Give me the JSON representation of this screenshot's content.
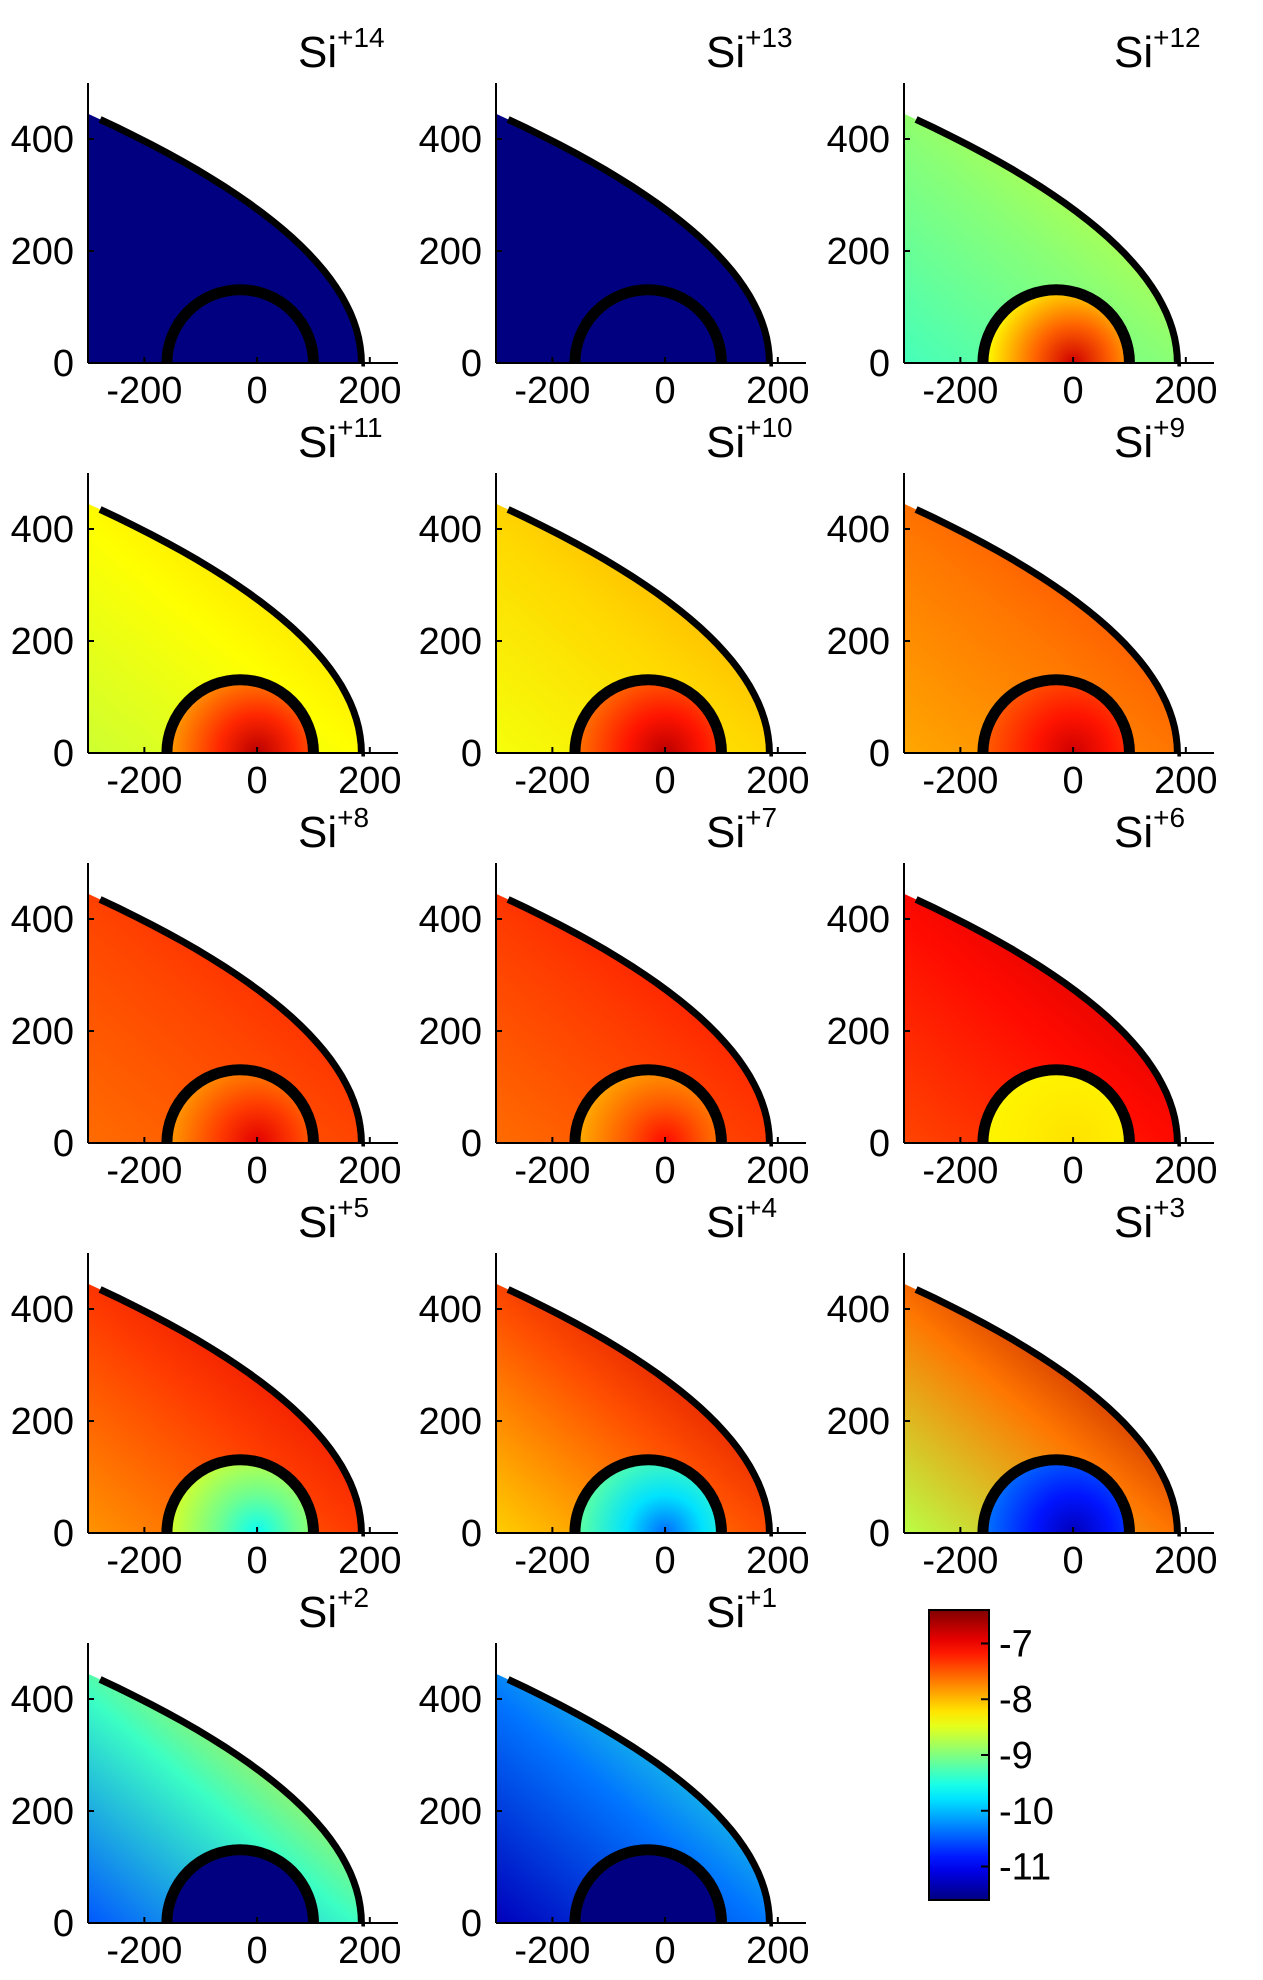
{
  "chart_data": {
    "type": "heatmap",
    "layout": {
      "rows": 5,
      "cols": 3
    },
    "xlim": [
      -300,
      250
    ],
    "ylim": [
      0,
      500
    ],
    "x_ticks": [
      -200,
      0,
      200
    ],
    "y_ticks": [
      0,
      200,
      400
    ],
    "x_tick_labels": [
      "-200",
      "0",
      "200"
    ],
    "y_tick_labels": [
      "0",
      "200",
      "400"
    ],
    "outer_boundary": {
      "type": "paraboloid",
      "apex_x": 185,
      "x_at_top": -300,
      "top_y": 445
    },
    "inner_boundary": {
      "type": "semicircle",
      "center_x": -30,
      "radius": 130
    },
    "colorbar": {
      "min": -11.6,
      "max": -6.4,
      "ticks": [
        -7,
        -8,
        -9,
        -10,
        -11
      ],
      "tick_labels": [
        "-7",
        "-8",
        "-9",
        "-10",
        "-11"
      ],
      "colormap": "jet"
    },
    "panels": [
      {
        "base": "Si",
        "charge": "+14",
        "sample_values": {
          "background": -11.6,
          "near_bow": -11.6,
          "inside_core": -11.6,
          "center": -11.6
        }
      },
      {
        "base": "Si",
        "charge": "+13",
        "sample_values": {
          "background": -11.6,
          "near_bow": -11.6,
          "inside_core": -11.6,
          "center": -11.6
        }
      },
      {
        "base": "Si",
        "charge": "+12",
        "sample_values": {
          "background": -9.3,
          "near_bow": -8.6,
          "inside_core": -8.3,
          "center": -6.8
        }
      },
      {
        "base": "Si",
        "charge": "+11",
        "sample_values": {
          "background": -8.6,
          "near_bow": -8.1,
          "inside_core": -7.8,
          "center": -6.7
        }
      },
      {
        "base": "Si",
        "charge": "+10",
        "sample_values": {
          "background": -8.4,
          "near_bow": -7.9,
          "inside_core": -7.6,
          "center": -6.7
        }
      },
      {
        "base": "Si",
        "charge": "+9",
        "sample_values": {
          "background": -7.9,
          "near_bow": -7.4,
          "inside_core": -7.5,
          "center": -6.8
        }
      },
      {
        "base": "Si",
        "charge": "+8",
        "sample_values": {
          "background": -7.6,
          "near_bow": -7.2,
          "inside_core": -7.8,
          "center": -6.9
        }
      },
      {
        "base": "Si",
        "charge": "+7",
        "sample_values": {
          "background": -7.6,
          "near_bow": -7.1,
          "inside_core": -7.9,
          "center": -7.1
        }
      },
      {
        "base": "Si",
        "charge": "+6",
        "sample_values": {
          "background": -7.4,
          "near_bow": -6.8,
          "inside_core": -8.3,
          "center": -8.2
        }
      },
      {
        "base": "Si",
        "charge": "+5",
        "sample_values": {
          "background": -7.8,
          "near_bow": -6.9,
          "inside_core": -8.6,
          "center": -9.6
        }
      },
      {
        "base": "Si",
        "charge": "+4",
        "sample_values": {
          "background": -8.1,
          "near_bow": -6.8,
          "inside_core": -9.2,
          "center": -10.4
        }
      },
      {
        "base": "Si",
        "charge": "+3",
        "sample_values": {
          "background": -8.7,
          "near_bow": -6.6,
          "inside_core": -10.4,
          "center": -11.3
        }
      },
      {
        "base": "Si",
        "charge": "+2",
        "sample_values": {
          "background": -10.5,
          "near_bow": -8.2,
          "inside_core": -11.6,
          "center": -11.6
        }
      },
      {
        "base": "Si",
        "charge": "+1",
        "sample_values": {
          "background": -11.3,
          "near_bow": -9.4,
          "inside_core": -11.6,
          "center": -11.6
        }
      }
    ]
  }
}
